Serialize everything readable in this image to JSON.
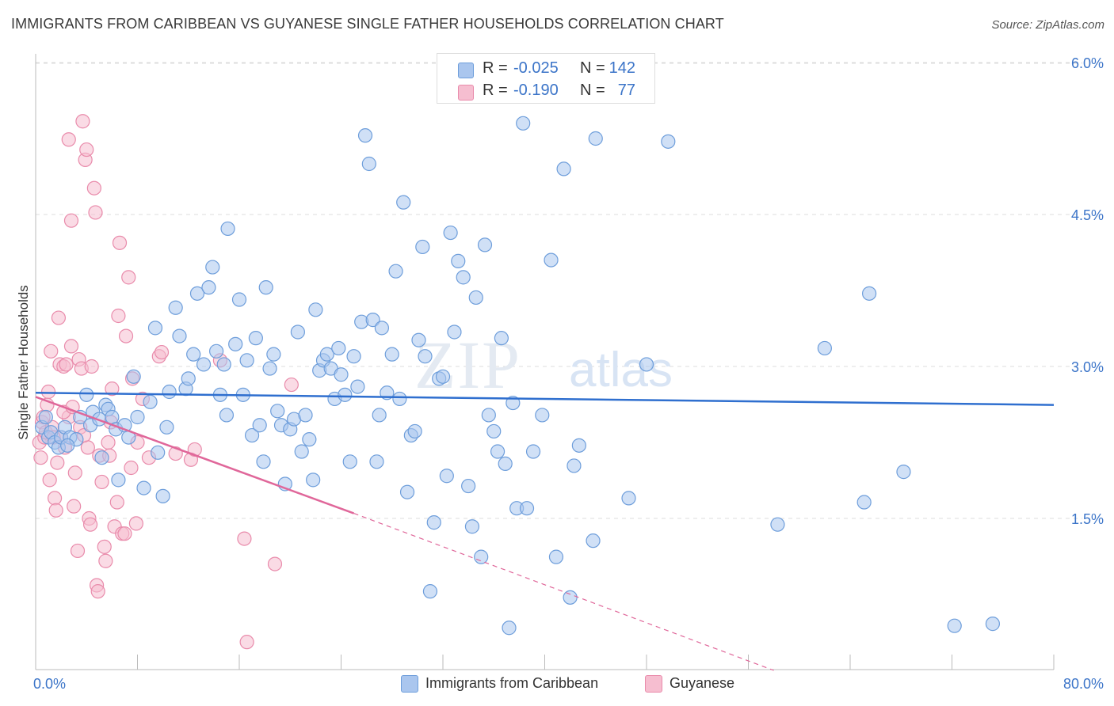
{
  "title": "IMMIGRANTS FROM CARIBBEAN VS GUYANESE SINGLE FATHER HOUSEHOLDS CORRELATION CHART",
  "source": "Source: ZipAtlas.com",
  "watermark": {
    "zip": "ZIP",
    "atlas": "atlas"
  },
  "legend_stats": [
    {
      "r_label": "R =",
      "r_value": "-0.025",
      "n_label": "N =",
      "n_value": "142",
      "color": "#6ea1e5"
    },
    {
      "r_label": "R =",
      "r_value": "-0.190",
      "n_label": "N =",
      "n_value": "77",
      "color": "#f09bb8"
    }
  ],
  "colors": {
    "blue_fill": "#aac6ee",
    "blue_stroke": "#6e9edb",
    "blue_line": "#2f6fcf",
    "pink_fill": "#f6bed0",
    "pink_stroke": "#e98bab",
    "pink_line": "#e0679a",
    "grid": "#dcdcdc",
    "tick_text": "#3b74c8"
  },
  "chart_data": {
    "type": "scatter",
    "title": "IMMIGRANTS FROM CARIBBEAN VS GUYANESE SINGLE FATHER HOUSEHOLDS CORRELATION CHART",
    "xlabel": "",
    "ylabel": "Single Father Households",
    "xlim": [
      0,
      80
    ],
    "ylim": [
      0,
      6.3
    ],
    "x_tick_labels": [
      "0.0%",
      "80.0%"
    ],
    "y_ticks": [
      1.5,
      3.0,
      4.5,
      6.0
    ],
    "y_tick_labels": [
      "1.5%",
      "3.0%",
      "4.5%",
      "6.0%"
    ],
    "grid": "horizontal dashed",
    "legend_position": "bottom-center",
    "series": [
      {
        "name": "Immigrants from Caribbean",
        "color": "#6ea1e5",
        "trend": {
          "x": [
            0,
            80
          ],
          "y": [
            2.74,
            2.62
          ]
        },
        "points": [
          [
            0.5,
            2.4
          ],
          [
            0.8,
            2.5
          ],
          [
            1,
            2.3
          ],
          [
            1.2,
            2.35
          ],
          [
            1.5,
            2.25
          ],
          [
            1.8,
            2.2
          ],
          [
            2,
            2.3
          ],
          [
            2.3,
            2.4
          ],
          [
            2.7,
            2.3
          ],
          [
            3.2,
            2.28
          ],
          [
            2.5,
            2.22
          ],
          [
            3.5,
            2.5
          ],
          [
            4,
            2.72
          ],
          [
            4.3,
            2.42
          ],
          [
            4.5,
            2.55
          ],
          [
            5,
            2.48
          ],
          [
            5.5,
            2.62
          ],
          [
            5.7,
            2.58
          ],
          [
            6,
            2.5
          ],
          [
            6.3,
            2.38
          ],
          [
            6.5,
            1.88
          ],
          [
            5.2,
            2.1
          ],
          [
            7,
            2.42
          ],
          [
            7.3,
            2.3
          ],
          [
            7.7,
            2.9
          ],
          [
            8,
            2.5
          ],
          [
            8.5,
            1.8
          ],
          [
            9,
            2.65
          ],
          [
            9.4,
            3.38
          ],
          [
            9.6,
            2.15
          ],
          [
            10,
            1.72
          ],
          [
            10.3,
            2.4
          ],
          [
            10.5,
            2.75
          ],
          [
            11,
            3.58
          ],
          [
            11.3,
            3.3
          ],
          [
            11.8,
            2.78
          ],
          [
            12,
            2.88
          ],
          [
            12.4,
            3.12
          ],
          [
            12.7,
            3.72
          ],
          [
            13.2,
            3.02
          ],
          [
            13.6,
            3.78
          ],
          [
            13.9,
            3.98
          ],
          [
            14.2,
            3.15
          ],
          [
            14.5,
            2.72
          ],
          [
            14.8,
            3.02
          ],
          [
            15,
            2.52
          ],
          [
            15.1,
            4.36
          ],
          [
            15.7,
            3.22
          ],
          [
            16,
            3.66
          ],
          [
            16.3,
            2.72
          ],
          [
            16.6,
            3.06
          ],
          [
            17,
            2.32
          ],
          [
            17.3,
            3.28
          ],
          [
            17.6,
            2.42
          ],
          [
            17.9,
            2.06
          ],
          [
            18.1,
            3.78
          ],
          [
            18.4,
            2.98
          ],
          [
            18.7,
            3.12
          ],
          [
            19,
            2.56
          ],
          [
            19.3,
            2.42
          ],
          [
            19.6,
            1.84
          ],
          [
            20,
            2.38
          ],
          [
            20.3,
            2.48
          ],
          [
            20.6,
            3.34
          ],
          [
            20.9,
            2.16
          ],
          [
            21.2,
            2.52
          ],
          [
            21.5,
            2.28
          ],
          [
            21.8,
            1.88
          ],
          [
            22,
            3.56
          ],
          [
            22.3,
            2.96
          ],
          [
            22.6,
            3.06
          ],
          [
            22.9,
            3.12
          ],
          [
            23.2,
            2.98
          ],
          [
            23.5,
            2.68
          ],
          [
            23.8,
            3.18
          ],
          [
            24,
            2.92
          ],
          [
            24.3,
            2.72
          ],
          [
            24.7,
            2.06
          ],
          [
            25,
            3.1
          ],
          [
            25.3,
            2.8
          ],
          [
            25.6,
            3.44
          ],
          [
            25.9,
            5.28
          ],
          [
            26.2,
            5.0
          ],
          [
            26.5,
            3.46
          ],
          [
            26.8,
            2.06
          ],
          [
            27,
            2.52
          ],
          [
            27.2,
            3.38
          ],
          [
            27.6,
            2.74
          ],
          [
            28,
            3.12
          ],
          [
            28.3,
            3.94
          ],
          [
            28.6,
            2.68
          ],
          [
            28.9,
            4.62
          ],
          [
            29.2,
            1.76
          ],
          [
            29.5,
            2.32
          ],
          [
            29.8,
            2.36
          ],
          [
            30.1,
            3.26
          ],
          [
            30.4,
            4.18
          ],
          [
            30.6,
            3.1
          ],
          [
            31,
            0.78
          ],
          [
            31.3,
            1.46
          ],
          [
            31.7,
            2.88
          ],
          [
            32,
            2.9
          ],
          [
            32.3,
            1.92
          ],
          [
            32.6,
            4.32
          ],
          [
            32.9,
            3.34
          ],
          [
            33.2,
            4.04
          ],
          [
            33.6,
            3.88
          ],
          [
            34,
            1.82
          ],
          [
            34.3,
            1.42
          ],
          [
            34.6,
            3.68
          ],
          [
            35,
            1.12
          ],
          [
            35.3,
            4.2
          ],
          [
            35.6,
            2.52
          ],
          [
            36,
            2.36
          ],
          [
            36.3,
            2.16
          ],
          [
            36.6,
            3.28
          ],
          [
            36.9,
            2.04
          ],
          [
            37.2,
            0.42
          ],
          [
            37.5,
            2.64
          ],
          [
            37.8,
            1.6
          ],
          [
            38.3,
            5.4
          ],
          [
            38.6,
            1.6
          ],
          [
            39.1,
            2.16
          ],
          [
            39.8,
            2.52
          ],
          [
            40.5,
            4.05
          ],
          [
            40.9,
            1.12
          ],
          [
            41.5,
            4.95
          ],
          [
            42,
            0.72
          ],
          [
            42.3,
            2.02
          ],
          [
            42.7,
            2.22
          ],
          [
            43.8,
            1.28
          ],
          [
            44,
            5.25
          ],
          [
            46.6,
            1.7
          ],
          [
            48,
            3.02
          ],
          [
            49.7,
            5.22
          ],
          [
            58.3,
            1.44
          ],
          [
            62,
            3.18
          ],
          [
            65.1,
            1.66
          ],
          [
            65.5,
            3.72
          ],
          [
            68.2,
            1.96
          ],
          [
            72.2,
            0.44
          ],
          [
            75.2,
            0.46
          ]
        ]
      },
      {
        "name": "Guyanese",
        "color": "#f09bb8",
        "trend": {
          "x": [
            0,
            25
          ],
          "y": [
            2.7,
            1.55
          ]
        },
        "trend_dashed": {
          "x": [
            25,
            58
          ],
          "y": [
            1.55,
            0.0
          ]
        },
        "points": [
          [
            0.3,
            2.25
          ],
          [
            0.5,
            2.45
          ],
          [
            0.6,
            2.5
          ],
          [
            0.7,
            2.3
          ],
          [
            0.8,
            2.35
          ],
          [
            1,
            2.75
          ],
          [
            1.2,
            3.15
          ],
          [
            1.3,
            2.4
          ],
          [
            1.5,
            1.7
          ],
          [
            1.6,
            1.58
          ],
          [
            1.8,
            3.48
          ],
          [
            1.9,
            3.02
          ],
          [
            2,
            2.3
          ],
          [
            2.2,
            3.0
          ],
          [
            2.3,
            2.2
          ],
          [
            2.4,
            3.02
          ],
          [
            2.6,
            2.5
          ],
          [
            2.8,
            3.2
          ],
          [
            3,
            1.62
          ],
          [
            3.1,
            1.95
          ],
          [
            3.3,
            1.18
          ],
          [
            3.4,
            3.07
          ],
          [
            3.6,
            2.98
          ],
          [
            3.7,
            5.42
          ],
          [
            3.9,
            5.04
          ],
          [
            4,
            5.14
          ],
          [
            4.2,
            1.5
          ],
          [
            4.3,
            1.44
          ],
          [
            4.4,
            3.0
          ],
          [
            4.6,
            4.76
          ],
          [
            4.7,
            4.52
          ],
          [
            4.8,
            0.84
          ],
          [
            4.9,
            0.78
          ],
          [
            5,
            2.12
          ],
          [
            5.2,
            1.86
          ],
          [
            5.4,
            1.22
          ],
          [
            5.5,
            1.08
          ],
          [
            5.7,
            2.25
          ],
          [
            5.8,
            2.12
          ],
          [
            6,
            2.78
          ],
          [
            6.2,
            1.42
          ],
          [
            6.4,
            1.66
          ],
          [
            6.5,
            3.5
          ],
          [
            6.6,
            4.22
          ],
          [
            6.8,
            1.35
          ],
          [
            7,
            1.35
          ],
          [
            7.1,
            3.3
          ],
          [
            7.3,
            3.88
          ],
          [
            7.5,
            2.0
          ],
          [
            7.6,
            2.88
          ],
          [
            7.9,
            1.45
          ],
          [
            8,
            2.25
          ],
          [
            8.4,
            2.68
          ],
          [
            8.9,
            2.1
          ],
          [
            9.7,
            3.1
          ],
          [
            9.9,
            3.14
          ],
          [
            11,
            2.14
          ],
          [
            12.2,
            2.08
          ],
          [
            12.5,
            2.18
          ],
          [
            14.5,
            3.06
          ],
          [
            16.4,
            1.3
          ],
          [
            16.6,
            0.28
          ],
          [
            18.8,
            1.05
          ],
          [
            20.1,
            2.82
          ],
          [
            2.8,
            4.44
          ],
          [
            2.6,
            5.24
          ],
          [
            1.1,
            1.88
          ],
          [
            0.9,
            2.62
          ],
          [
            2.2,
            2.55
          ],
          [
            3.5,
            2.4
          ],
          [
            1.4,
            2.3
          ],
          [
            4.1,
            2.2
          ],
          [
            0.4,
            2.1
          ],
          [
            3.8,
            2.32
          ],
          [
            1.7,
            2.05
          ],
          [
            5.9,
            2.45
          ],
          [
            2.9,
            2.6
          ]
        ]
      }
    ]
  },
  "bottom_legend": [
    {
      "label": "Immigrants from Caribbean"
    },
    {
      "label": "Guyanese"
    }
  ]
}
